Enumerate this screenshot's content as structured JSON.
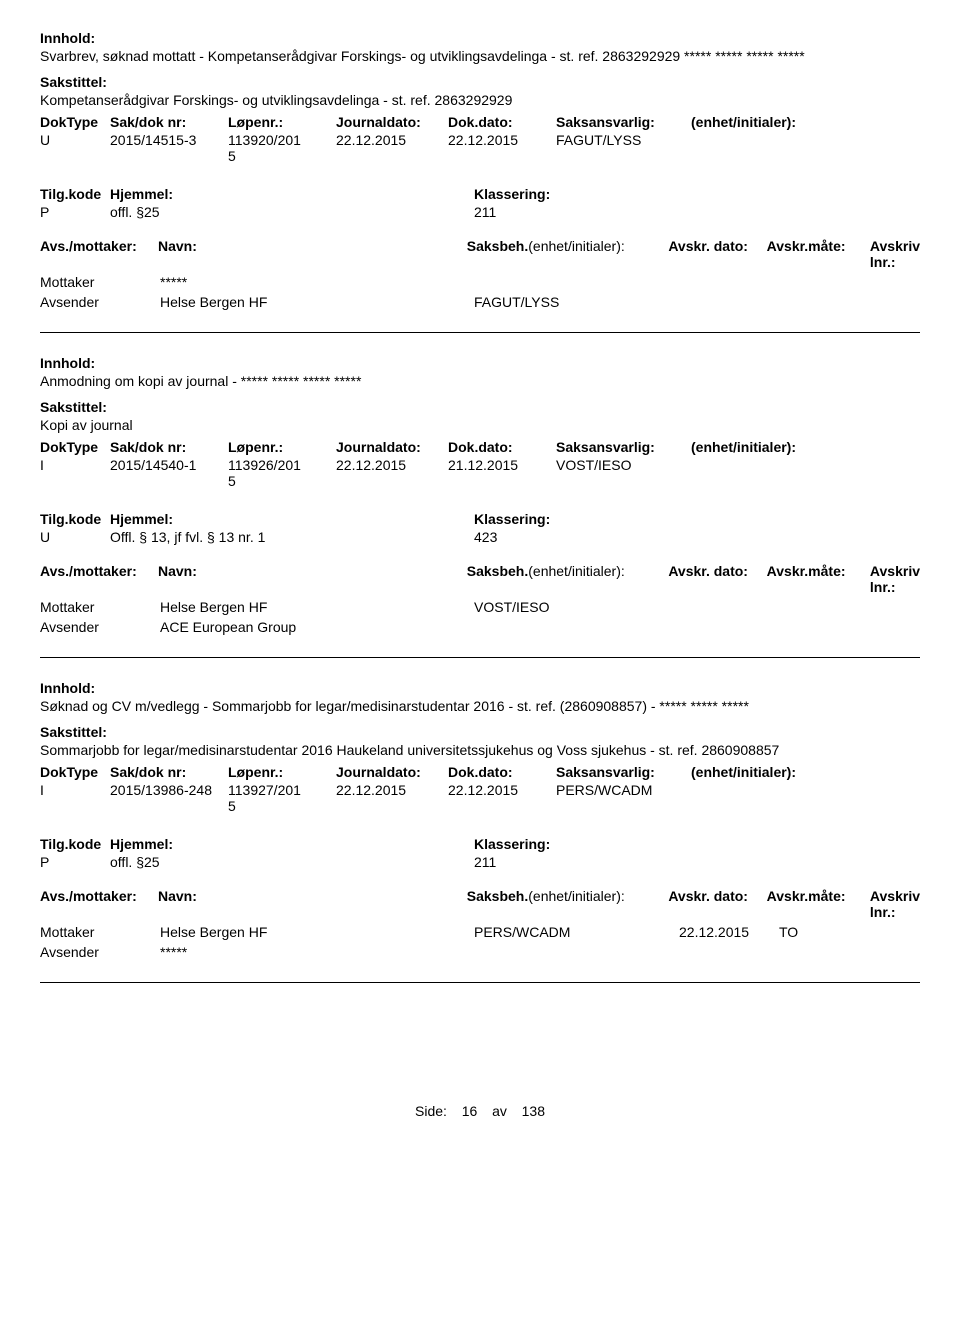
{
  "labels": {
    "innhold": "Innhold:",
    "sakstittel": "Sakstittel:",
    "doktype": "DokType",
    "sakdoknr": "Sak/dok nr:",
    "lopenr": "Løpenr.:",
    "journaldato": "Journaldato:",
    "dokdato": "Dok.dato:",
    "saksansvarlig": "Saksansvarlig:",
    "enhet_initialer": "(enhet/initialer):",
    "tilgkode": "Tilg.kode",
    "hjemmel": "Hjemmel:",
    "klassering": "Klassering:",
    "avs_mottaker": "Avs./mottaker:",
    "navn": "Navn:",
    "saksbeh": "Saksbeh.",
    "saksbeh_enhet": "(enhet/initialer):",
    "avskr_dato": "Avskr. dato:",
    "avskr_mate": "Avskr.måte:",
    "avskriv_lnr": "Avskriv lnr.:",
    "mottaker": "Mottaker",
    "avsender": "Avsender"
  },
  "entries": [
    {
      "innhold": "Svarbrev, søknad mottatt - Kompetanserådgivar Forskings- og utviklingsavdelinga - st. ref. 2863292929 ***** ***** ***** *****",
      "sakstittel": "Kompetanserådgivar Forskings- og utviklingsavdelinga - st. ref. 2863292929",
      "doktype": "U",
      "sakdoknr": "2015/14515-3",
      "lopenr": "113920/201\n5",
      "journaldato": "22.12.2015",
      "dokdato": "22.12.2015",
      "saksansvarlig": "FAGUT/LYSS",
      "enhet": "",
      "tilgkode": "P",
      "hjemmel": "offl. §25",
      "klassering": "211",
      "parties": [
        {
          "role": "Mottaker",
          "navn": "*****",
          "saksbeh": "",
          "avskr_dato": "",
          "avskr_mate": ""
        },
        {
          "role": "Avsender",
          "navn": "Helse Bergen HF",
          "saksbeh": "FAGUT/LYSS",
          "avskr_dato": "",
          "avskr_mate": ""
        }
      ]
    },
    {
      "innhold": "Anmodning om kopi av journal - ***** ***** ***** *****",
      "sakstittel": "Kopi av journal",
      "doktype": "I",
      "sakdoknr": "2015/14540-1",
      "lopenr": "113926/201\n5",
      "journaldato": "22.12.2015",
      "dokdato": "21.12.2015",
      "saksansvarlig": "VOST/IESO",
      "enhet": "",
      "tilgkode": "U",
      "hjemmel": "Offl. § 13, jf fvl. § 13 nr. 1",
      "klassering": "423",
      "parties": [
        {
          "role": "Mottaker",
          "navn": "Helse Bergen HF",
          "saksbeh": "VOST/IESO",
          "avskr_dato": "",
          "avskr_mate": ""
        },
        {
          "role": "Avsender",
          "navn": "ACE European Group",
          "saksbeh": "",
          "avskr_dato": "",
          "avskr_mate": ""
        }
      ]
    },
    {
      "innhold": "Søknad og CV m/vedlegg - Sommarjobb for legar/medisinarstudentar 2016 - st. ref. (2860908857) - ***** ***** *****",
      "sakstittel": "Sommarjobb for legar/medisinarstudentar 2016 Haukeland universitetssjukehus og Voss sjukehus - st. ref. 2860908857",
      "doktype": "I",
      "sakdoknr": "2015/13986-248",
      "lopenr": "113927/201\n5",
      "journaldato": "22.12.2015",
      "dokdato": "22.12.2015",
      "saksansvarlig": "PERS/WCADM",
      "enhet": "",
      "tilgkode": "P",
      "hjemmel": "offl. §25",
      "klassering": "211",
      "parties": [
        {
          "role": "Mottaker",
          "navn": "Helse Bergen HF",
          "saksbeh": "PERS/WCADM",
          "avskr_dato": "22.12.2015",
          "avskr_mate": "TO"
        },
        {
          "role": "Avsender",
          "navn": "*****",
          "saksbeh": "",
          "avskr_dato": "",
          "avskr_mate": ""
        }
      ]
    }
  ],
  "footer": {
    "side_label": "Side:",
    "page": "16",
    "av": "av",
    "total": "138"
  }
}
